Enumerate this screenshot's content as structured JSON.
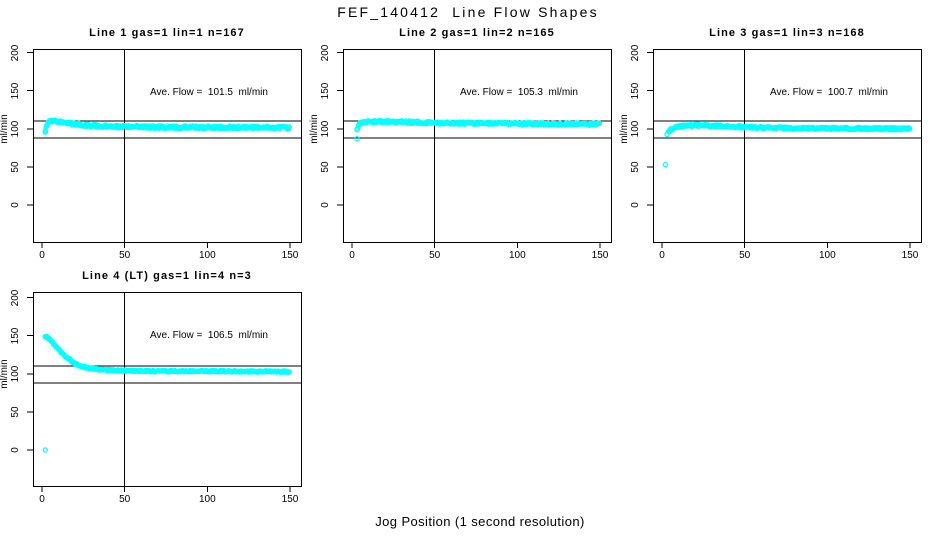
{
  "figure": {
    "main_title": "FEF_140412  Line Flow Shapes",
    "x_axis_label": "Jog Position (1 second resolution)",
    "background_color": "#ffffff",
    "point_color": "#00ffff",
    "axis_color": "#000000"
  },
  "chart_data": [
    {
      "type": "scatter",
      "title": "Line 1 gas=1 lin=1 n=167",
      "gas": 1,
      "lin": 1,
      "n": 167,
      "annotation": "Ave. Flow =  101.5  ml/min",
      "ave_flow_ml_min": 101.5,
      "ylabel": "ml/min",
      "x_ticks": [
        0,
        50,
        100,
        150
      ],
      "y_ticks": [
        0,
        50,
        100,
        150,
        200
      ],
      "xlim": [
        0,
        150
      ],
      "ylim": [
        0,
        200
      ],
      "hlines": [
        110,
        88
      ],
      "vline": 50,
      "band_halfwidth": 1.7,
      "profile": [
        [
          2,
          99
        ],
        [
          3,
          104
        ],
        [
          4,
          109
        ],
        [
          5,
          110.5
        ],
        [
          7,
          110.5
        ],
        [
          10,
          109.5
        ],
        [
          14,
          108
        ],
        [
          19,
          106.5
        ],
        [
          25,
          105
        ],
        [
          33,
          104
        ],
        [
          45,
          103
        ],
        [
          60,
          102.5
        ],
        [
          90,
          102
        ],
        [
          150,
          101.5
        ]
      ],
      "outliers": [
        [
          2,
          95.5
        ]
      ]
    },
    {
      "type": "scatter",
      "title": "Line 2 gas=1 lin=2 n=165",
      "gas": 1,
      "lin": 2,
      "n": 165,
      "annotation": "Ave. Flow =  105.3  ml/min",
      "ave_flow_ml_min": 105.3,
      "ylabel": "ml/min",
      "x_ticks": [
        0,
        50,
        100,
        150
      ],
      "y_ticks": [
        0,
        50,
        100,
        150,
        200
      ],
      "xlim": [
        0,
        150
      ],
      "ylim": [
        0,
        200
      ],
      "hlines": [
        110,
        88
      ],
      "vline": 50,
      "band_halfwidth": 1.5,
      "profile": [
        [
          3,
          99
        ],
        [
          4,
          104
        ],
        [
          5,
          107
        ],
        [
          7,
          108.5
        ],
        [
          10,
          109
        ],
        [
          15,
          109.5
        ],
        [
          25,
          109
        ],
        [
          40,
          108.5
        ],
        [
          60,
          107.5
        ],
        [
          90,
          107
        ],
        [
          120,
          106.5
        ],
        [
          150,
          106
        ]
      ],
      "outliers": [
        [
          3,
          87
        ]
      ]
    },
    {
      "type": "scatter",
      "title": "Line 3 gas=1 lin=3 n=168",
      "gas": 1,
      "lin": 3,
      "n": 168,
      "annotation": "Ave. Flow =  100.7  ml/min",
      "ave_flow_ml_min": 100.7,
      "ylabel": "ml/min",
      "x_ticks": [
        0,
        50,
        100,
        150
      ],
      "y_ticks": [
        0,
        50,
        100,
        150,
        200
      ],
      "xlim": [
        0,
        150
      ],
      "ylim": [
        0,
        200
      ],
      "hlines": [
        110,
        88
      ],
      "vline": 50,
      "band_halfwidth": 1.5,
      "profile": [
        [
          4,
          95
        ],
        [
          5,
          98
        ],
        [
          7,
          101
        ],
        [
          10,
          103
        ],
        [
          15,
          104
        ],
        [
          22,
          104.5
        ],
        [
          30,
          104
        ],
        [
          40,
          103
        ],
        [
          55,
          102
        ],
        [
          75,
          101
        ],
        [
          100,
          100.5
        ],
        [
          150,
          100
        ]
      ],
      "outliers": [
        [
          2,
          53
        ],
        [
          3,
          92.5
        ]
      ]
    },
    {
      "type": "scatter",
      "title": "Line 4 (LT) gas=1 lin=4 n=3",
      "gas": 1,
      "lin": 4,
      "n": 3,
      "annotation": "Ave. Flow =  106.5  ml/min",
      "ave_flow_ml_min": 106.5,
      "ylabel": "ml/min",
      "x_ticks": [
        0,
        50,
        100,
        150
      ],
      "y_ticks": [
        0,
        50,
        100,
        150,
        200
      ],
      "xlim": [
        0,
        150
      ],
      "ylim": [
        0,
        200
      ],
      "hlines": [
        110,
        88
      ],
      "vline": 50,
      "band_halfwidth": 0.9,
      "profile": [
        [
          2,
          149
        ],
        [
          3,
          148
        ],
        [
          4,
          146.5
        ],
        [
          5,
          144.5
        ],
        [
          6,
          142
        ],
        [
          7,
          139.5
        ],
        [
          8,
          137
        ],
        [
          9,
          134.5
        ],
        [
          10,
          132
        ],
        [
          12,
          127.5
        ],
        [
          14,
          123.5
        ],
        [
          16,
          120
        ],
        [
          18,
          116.5
        ],
        [
          20,
          113.5
        ],
        [
          23,
          110.5
        ],
        [
          26,
          108.5
        ],
        [
          30,
          107
        ],
        [
          35,
          105.5
        ],
        [
          42,
          104.5
        ],
        [
          52,
          104
        ],
        [
          70,
          103.5
        ],
        [
          100,
          103.5
        ],
        [
          130,
          103
        ],
        [
          150,
          103
        ]
      ],
      "outliers": [
        [
          2,
          0
        ]
      ]
    }
  ]
}
